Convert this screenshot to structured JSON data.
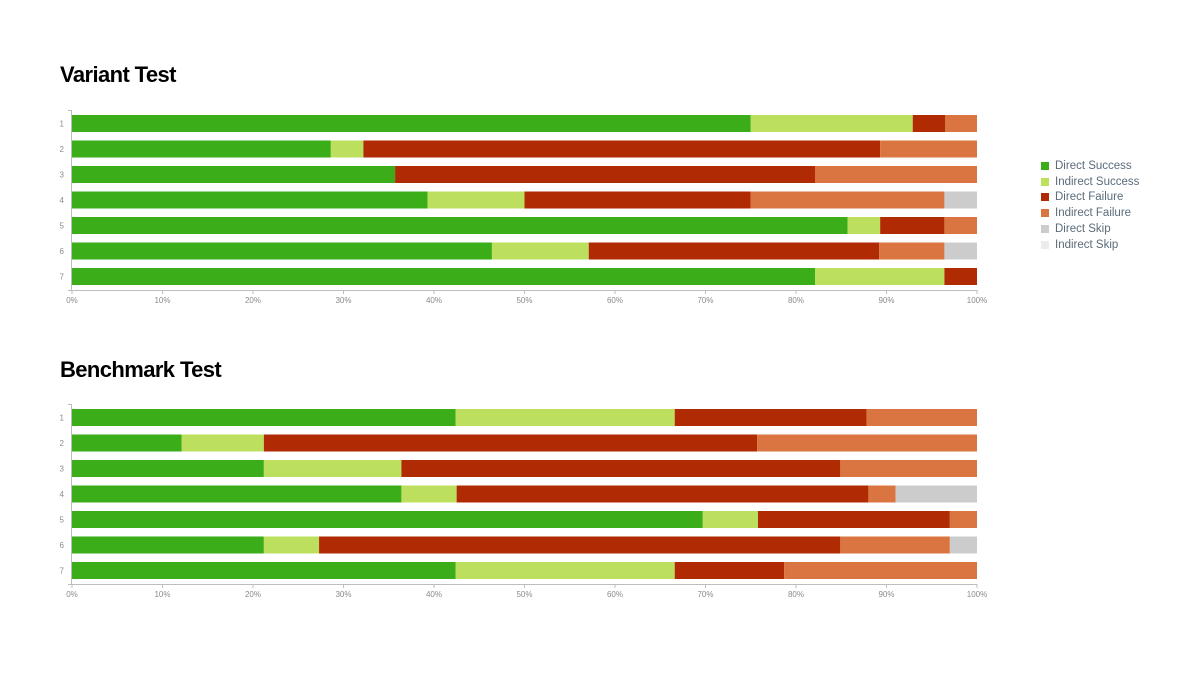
{
  "legend": [
    {
      "name": "Direct Success",
      "color": "#3aad18"
    },
    {
      "name": "Indirect Success",
      "color": "#bce05d"
    },
    {
      "name": "Direct Failure",
      "color": "#b02a04"
    },
    {
      "name": "Indirect Failure",
      "color": "#da7441"
    },
    {
      "name": "Direct Skip",
      "color": "#cccccc"
    },
    {
      "name": "Indirect Skip",
      "color": "#ececec"
    }
  ],
  "chart_data": [
    {
      "type": "bar",
      "orientation": "horizontal",
      "stacked": true,
      "title": "Variant Test",
      "categories": [
        "1",
        "2",
        "3",
        "4",
        "5",
        "6",
        "7"
      ],
      "xlim": [
        0,
        100
      ],
      "x_ticks": [
        "0%",
        "10%",
        "20%",
        "30%",
        "40%",
        "50%",
        "60%",
        "70%",
        "80%",
        "90%",
        "100%"
      ],
      "legend_position": "right",
      "series": [
        {
          "name": "Direct Success",
          "values": [
            75,
            28.6,
            35.7,
            39.3,
            85.7,
            46.4,
            82.1
          ]
        },
        {
          "name": "Indirect Success",
          "values": [
            17.9,
            3.6,
            0,
            10.7,
            3.6,
            10.7,
            14.3
          ]
        },
        {
          "name": "Direct Failure",
          "values": [
            3.6,
            57.1,
            46.4,
            25,
            7.1,
            32.1,
            3.6
          ]
        },
        {
          "name": "Indirect Failure",
          "values": [
            3.5,
            10.7,
            17.9,
            21.4,
            3.6,
            7.2,
            0
          ]
        },
        {
          "name": "Direct Skip",
          "values": [
            0,
            0,
            0,
            3.6,
            0,
            3.6,
            0
          ]
        },
        {
          "name": "Indirect Skip",
          "values": [
            0,
            0,
            0,
            0,
            0,
            0,
            0
          ]
        }
      ]
    },
    {
      "type": "bar",
      "orientation": "horizontal",
      "stacked": true,
      "title": "Benchmark Test",
      "categories": [
        "1",
        "2",
        "3",
        "4",
        "5",
        "6",
        "7"
      ],
      "xlim": [
        0,
        100
      ],
      "x_ticks": [
        "0%",
        "10%",
        "20%",
        "30%",
        "40%",
        "50%",
        "60%",
        "70%",
        "80%",
        "90%",
        "100%"
      ],
      "legend_position": "right",
      "series": [
        {
          "name": "Direct Success",
          "values": [
            42.4,
            12.1,
            21.2,
            36.4,
            69.7,
            21.2,
            42.4
          ]
        },
        {
          "name": "Indirect Success",
          "values": [
            24.2,
            9.1,
            15.2,
            6.1,
            6.1,
            6.1,
            24.2
          ]
        },
        {
          "name": "Direct Failure",
          "values": [
            21.2,
            54.5,
            48.5,
            45.5,
            21.2,
            57.6,
            12.1
          ]
        },
        {
          "name": "Indirect Failure",
          "values": [
            12.2,
            24.3,
            15.1,
            3,
            3,
            12.1,
            21.3
          ]
        },
        {
          "name": "Direct Skip",
          "values": [
            0,
            0,
            0,
            9,
            0,
            3,
            0
          ]
        },
        {
          "name": "Indirect Skip",
          "values": [
            0,
            0,
            0,
            0,
            0,
            0,
            0
          ]
        }
      ]
    }
  ]
}
